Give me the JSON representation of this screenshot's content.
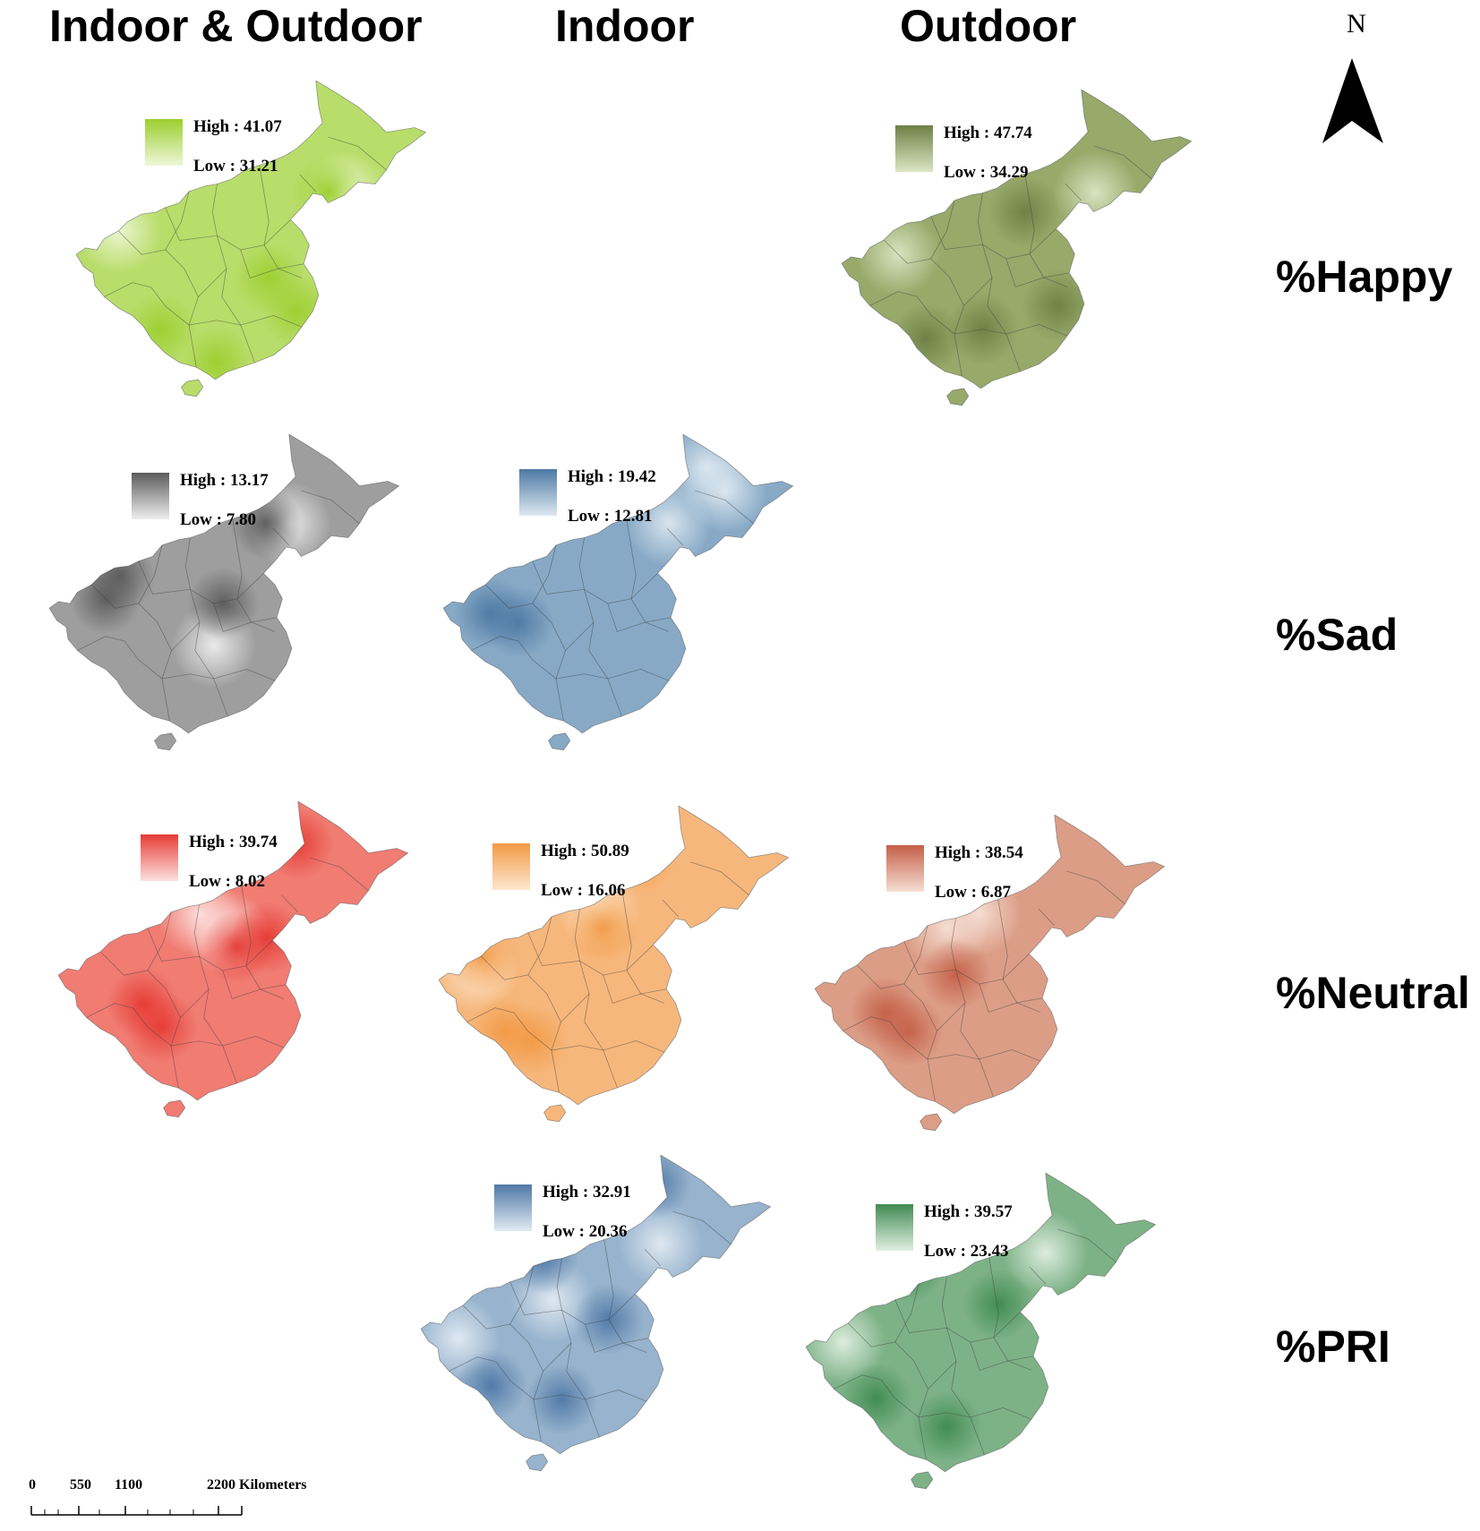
{
  "columns": {
    "both": "Indoor & Outdoor",
    "indoor": "Indoor",
    "outdoor": "Outdoor"
  },
  "rows": {
    "happy": "%Happy",
    "sad": "%Sad",
    "neutral": "%Neutral",
    "pri": "%PRI"
  },
  "north_arrow": {
    "label": "N"
  },
  "scale_bar": {
    "ticks": [
      "0",
      "550",
      "1100",
      "2200 Kilometers"
    ]
  },
  "maps": {
    "happy_both": {
      "high": "High : 41.07",
      "low": "Low : 31.21",
      "high_color": "#9bcf2e",
      "low_color": "#eef7d8",
      "base_color": "#b9dd6a"
    },
    "happy_outdoor": {
      "high": "High : 47.74",
      "low": "Low : 34.29",
      "high_color": "#6e7f45",
      "low_color": "#dce6c4",
      "base_color": "#98a96a"
    },
    "sad_both": {
      "high": "High : 13.17",
      "low": "Low : 7.80",
      "high_color": "#5b5b5b",
      "low_color": "#eeeeee",
      "base_color": "#9e9e9e"
    },
    "sad_indoor": {
      "high": "High : 19.42",
      "low": "Low : 12.81",
      "high_color": "#4d79a3",
      "low_color": "#dde8f0",
      "base_color": "#87a9c6"
    },
    "neutral_both": {
      "high": "High : 39.74",
      "low": "Low : 8.02",
      "high_color": "#e63b35",
      "low_color": "#fce1df",
      "base_color": "#f07c72"
    },
    "neutral_indoor": {
      "high": "High : 50.89",
      "low": "Low : 16.06",
      "high_color": "#f29a45",
      "low_color": "#fde7cf",
      "base_color": "#f6b77c"
    },
    "neutral_outdoor": {
      "high": "High : 38.54",
      "low": "Low : 6.87",
      "high_color": "#c45f48",
      "low_color": "#f6dfd4",
      "base_color": "#dc9d86"
    },
    "pri_indoor": {
      "high": "High : 32.91",
      "low": "Low : 20.36",
      "high_color": "#4f78a6",
      "low_color": "#e2ebf3",
      "base_color": "#97b3cd"
    },
    "pri_outdoor": {
      "high": "High : 39.57",
      "low": "Low : 23.43",
      "high_color": "#3f8a52",
      "low_color": "#e2efe2",
      "base_color": "#7db287"
    }
  }
}
